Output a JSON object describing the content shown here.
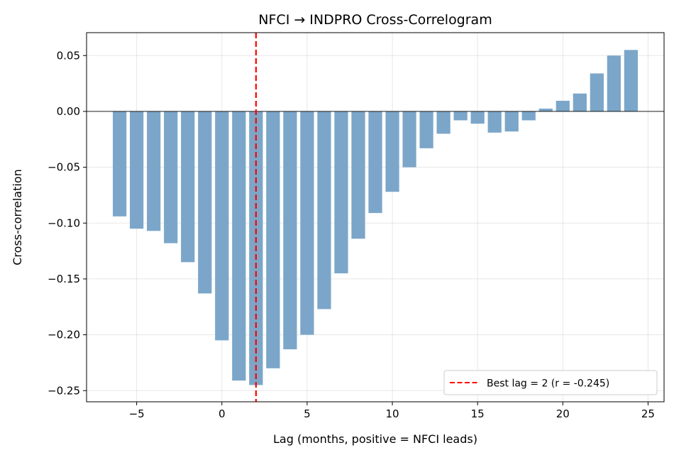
{
  "chart_data": {
    "type": "bar",
    "title": "NFCI → INDPRO Cross-Correlogram",
    "xlabel": "Lag (months, positive = NFCI leads)",
    "ylabel": "Cross-correlation",
    "xlim": [
      -7.94,
      25.94
    ],
    "ylim": [
      -0.26,
      0.0705
    ],
    "xticks": [
      -5,
      0,
      5,
      10,
      15,
      20,
      25
    ],
    "xtick_labels": [
      "−5",
      "0",
      "5",
      "10",
      "15",
      "20",
      "25"
    ],
    "yticks": [
      0.05,
      0.0,
      -0.05,
      -0.1,
      -0.15,
      -0.2,
      -0.25
    ],
    "ytick_labels": [
      "0.05",
      "0.00",
      "−0.05",
      "−0.10",
      "−0.15",
      "−0.20",
      "−0.25"
    ],
    "grid": true,
    "bar_color": "#7ba6c9",
    "x": [
      -6,
      -5,
      -4,
      -3,
      -2,
      -1,
      0,
      1,
      2,
      3,
      4,
      5,
      6,
      7,
      8,
      9,
      10,
      11,
      12,
      13,
      14,
      15,
      16,
      17,
      18,
      19,
      20,
      21,
      22,
      23,
      24
    ],
    "values": [
      -0.094,
      -0.105,
      -0.107,
      -0.118,
      -0.135,
      -0.163,
      -0.205,
      -0.241,
      -0.245,
      -0.23,
      -0.213,
      -0.2,
      -0.177,
      -0.145,
      -0.114,
      -0.091,
      -0.072,
      -0.05,
      -0.033,
      -0.02,
      -0.008,
      -0.011,
      -0.019,
      -0.018,
      -0.008,
      0.0025,
      0.0095,
      0.016,
      0.034,
      0.05,
      0.055
    ],
    "zero_line": 0,
    "best_lag_line": {
      "x": 2,
      "color": "#ff0000",
      "style": "dashed"
    },
    "legend": {
      "placement": "lower-right",
      "entries": [
        "Best lag = 2 (r = -0.245)"
      ]
    }
  }
}
